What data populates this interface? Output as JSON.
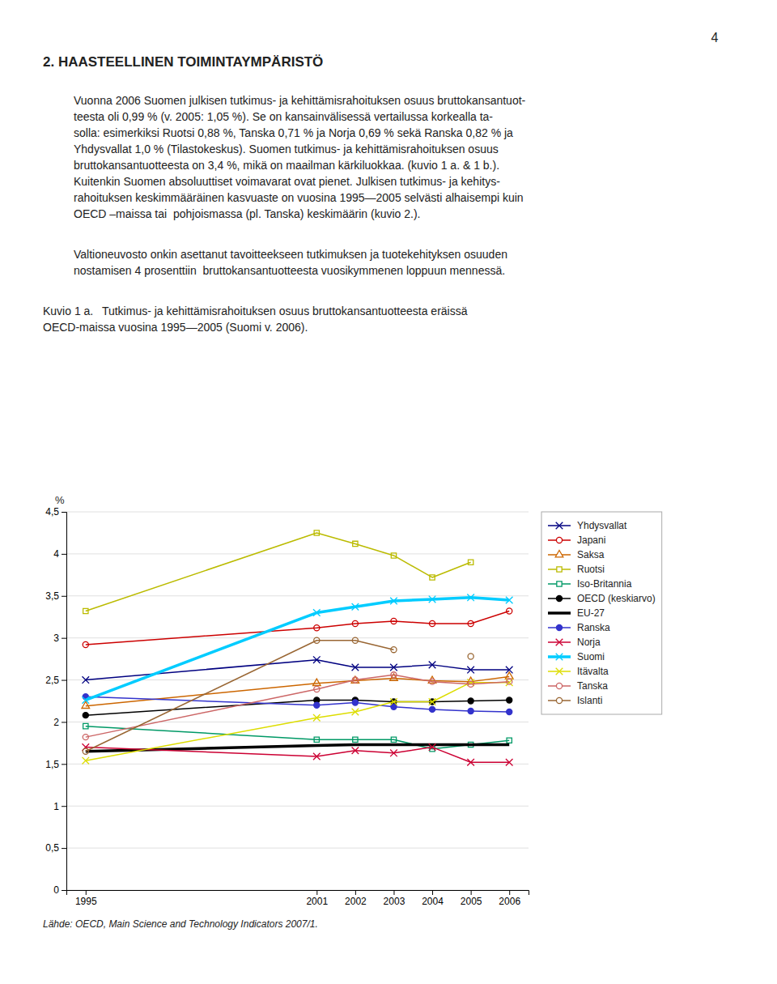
{
  "page_number": "4",
  "header": "2. HAASTEELLINEN TOIMINTAYMPÄRISTÖ",
  "body": [
    [
      "Vuonna 2006 Suomen julkisen tutkimus- ja kehittämisrahoituksen osuus bruttokansantuot-",
      "teesta oli 0,99 % (v. 2005: 1,05 %). Se on kansainvälisessä vertailussa korkealla ta-",
      "solla: esimerkiksi Ruotsi 0,88 %, Tanska 0,71 % ja Norja 0,69 % sekä Ranska 0,82 % ja",
      "Yhdysvallat 1,0 % (Tilastokeskus). Suomen tutkimus- ja kehittämisrahoituksen osuus",
      "bruttokansantuotteesta on 3,4 %, mikä on maailman kärkiluokkaa. (kuvio 1 a. & 1 b.).",
      "Kuitenkin Suomen absoluuttiset voimavarat ovat pienet. Julkisen tutkimus- ja kehitys-",
      "rahoituksen keskimmääräinen kasvuaste on vuosina 1995—2005 selvästi alhaisempi kuin",
      "OECD –maissa tai  pohjoismassa (pl. Tanska) keskimäärin (kuvio 2.)."
    ],
    [
      "Valtioneuvosto onkin asettanut tavoitteekseen tutkimuksen ja tuotekehityksen osuuden",
      "nostamisen 4 prosenttiin  bruttokansantuotteesta vuosikymmenen loppuun mennessä."
    ]
  ],
  "chart_data": {
    "type": "line",
    "title": [
      "Kuvio 1 a.  Tutkimus- ja kehittämisrahoituksen osuus bruttokansantuotteesta eräissä",
      "OECD-maissa vuosina 1995—2005 (Suomi v. 2006)."
    ],
    "ylabel": "%",
    "annotations": [
      "Lähde: OECD, Main Science and Technology Indicators 2007/1."
    ],
    "x": [
      1995,
      2001,
      2002,
      2003,
      2004,
      2005,
      2006
    ],
    "xlim": [
      1994.5,
      2006.5
    ],
    "xticks": [
      1995,
      2001,
      2002,
      2003,
      2004,
      2005,
      2006
    ],
    "ylim": [
      0,
      4.5
    ],
    "yticks": [
      0,
      {
        "value": 0.5,
        "label": "0,5"
      },
      1,
      {
        "value": 1.5,
        "label": "1,5"
      },
      2,
      {
        "value": 2.5,
        "label": "2,5"
      },
      3,
      {
        "value": 3.5,
        "label": "3,5"
      },
      4,
      {
        "value": 4.5,
        "label": "4,5"
      }
    ],
    "grid": true,
    "legend": "right",
    "series": [
      {
        "name": "Yhdysvallat",
        "color": "#000080",
        "marker": "x",
        "line_style": "solid",
        "values": [
          2.5,
          2.74,
          2.65,
          2.65,
          2.68,
          2.62,
          2.62
        ]
      },
      {
        "name": "Japani",
        "color": "#cc0000",
        "marker": "circle-open",
        "line_style": "solid",
        "values": [
          2.92,
          3.12,
          3.17,
          3.2,
          3.17,
          3.17,
          3.32
        ]
      },
      {
        "name": "Saksa",
        "color": "#cc6600",
        "marker": "triangle-open",
        "line_style": "solid",
        "values": [
          2.19,
          2.46,
          2.49,
          2.52,
          2.49,
          2.48,
          2.54
        ]
      },
      {
        "name": "Ruotsi",
        "color": "#bbbb00",
        "marker": "square-open",
        "line_style": "solid",
        "values": [
          3.32,
          4.25,
          4.12,
          3.98,
          3.72,
          3.9,
          null
        ]
      },
      {
        "name": "Iso-Britannia",
        "color": "#009966",
        "marker": "square-open",
        "line_style": "solid",
        "values": [
          1.95,
          1.79,
          1.79,
          1.79,
          1.68,
          1.73,
          1.78
        ]
      },
      {
        "name": "OECD (keskiarvo)",
        "color": "#000000",
        "marker": "circle",
        "line_style": "solid",
        "values": [
          2.08,
          2.26,
          2.26,
          2.24,
          2.24,
          2.25,
          2.26
        ]
      },
      {
        "name": "EU-27",
        "color": "#000000",
        "marker": "none",
        "line_style": "thick",
        "values": [
          1.65,
          1.72,
          1.73,
          1.73,
          1.73,
          1.73,
          1.73
        ]
      },
      {
        "name": "Ranska",
        "color": "#3333cc",
        "marker": "circle",
        "line_style": "solid",
        "values": [
          2.3,
          2.2,
          2.23,
          2.18,
          2.15,
          2.13,
          2.12
        ]
      },
      {
        "name": "Norja",
        "color": "#cc0033",
        "marker": "x",
        "line_style": "solid",
        "values": [
          1.7,
          1.59,
          1.66,
          1.63,
          1.7,
          1.52,
          1.52
        ]
      },
      {
        "name": "Suomi",
        "color": "#00ccff",
        "marker": "x",
        "line_style": "thick",
        "values": [
          2.26,
          3.3,
          3.37,
          3.44,
          3.46,
          3.48,
          3.45
        ]
      },
      {
        "name": "Itävalta",
        "color": "#dddd00",
        "marker": "x",
        "line_style": "solid",
        "values": [
          1.54,
          2.05,
          2.12,
          2.24,
          2.24,
          2.47,
          2.47
        ]
      },
      {
        "name": "Tanska",
        "color": "#cc6666",
        "marker": "circle-open",
        "line_style": "solid",
        "values": [
          1.82,
          2.39,
          2.5,
          2.56,
          2.48,
          2.45,
          2.48
        ]
      },
      {
        "name": "Islanti",
        "color": "#996633",
        "marker": "circle-open",
        "line_style": "solid",
        "values": [
          1.65,
          2.97,
          2.97,
          2.86,
          null,
          2.78,
          null
        ]
      }
    ]
  }
}
